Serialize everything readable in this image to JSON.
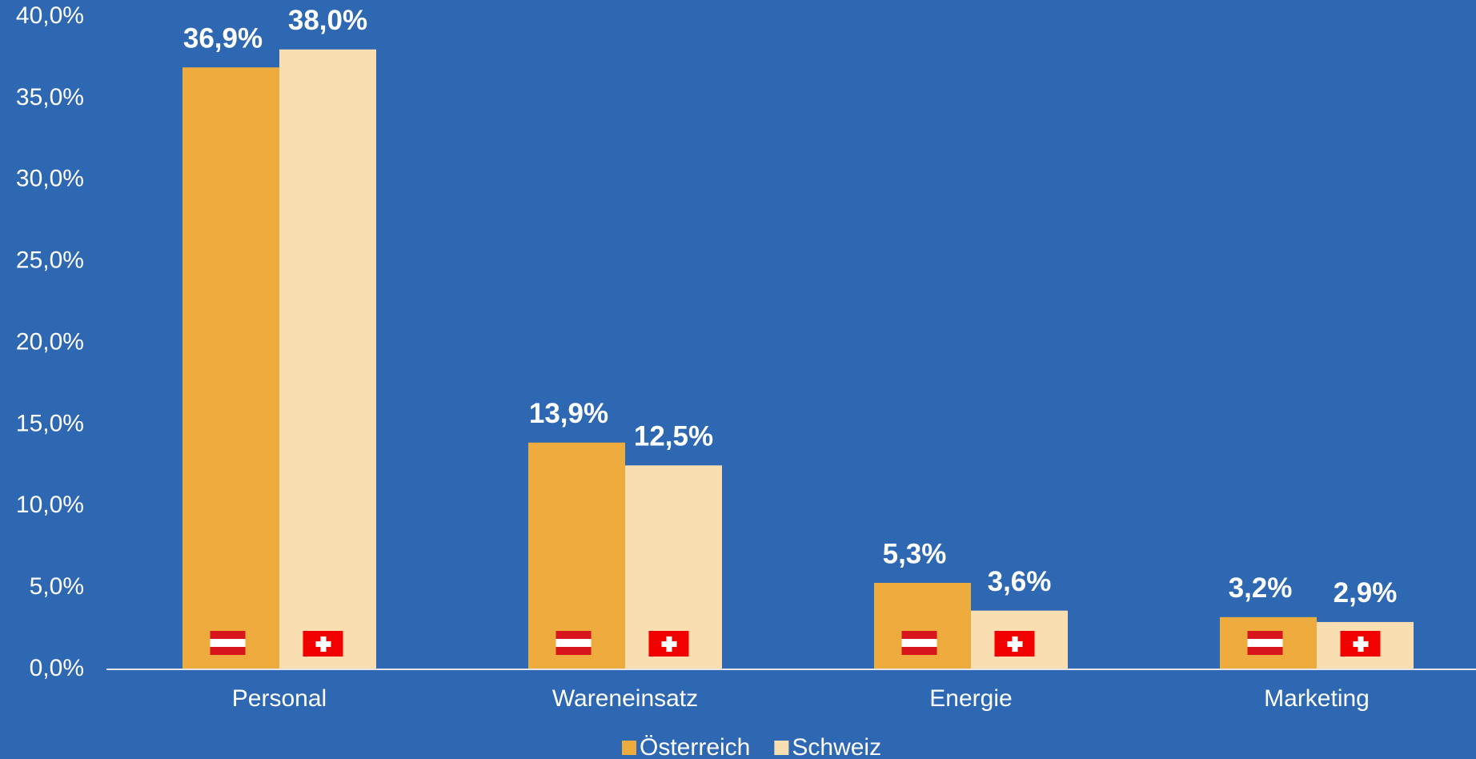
{
  "chart_data": {
    "type": "bar",
    "categories": [
      "Personal",
      "Wareneinsatz",
      "Energie",
      "Marketing"
    ],
    "series": [
      {
        "name": "Österreich",
        "color": "#eeac3e",
        "values": [
          36.9,
          13.9,
          5.3,
          3.2
        ],
        "value_labels": [
          "36,9%",
          "13,9%",
          "5,3%",
          "3,2%"
        ]
      },
      {
        "name": "Schweiz",
        "color": "#f8deb0",
        "values": [
          38.0,
          12.5,
          3.6,
          2.9
        ],
        "value_labels": [
          "38,0%",
          "12,5%",
          "3,6%",
          "2,9%"
        ]
      }
    ],
    "ylim": [
      0,
      40
    ],
    "yticks": [
      {
        "value": 0,
        "label": "0,0%"
      },
      {
        "value": 5,
        "label": "5,0%"
      },
      {
        "value": 10,
        "label": "10,0%"
      },
      {
        "value": 15,
        "label": "15,0%"
      },
      {
        "value": 20,
        "label": "20,0%"
      },
      {
        "value": 25,
        "label": "25,0%"
      },
      {
        "value": 30,
        "label": "30,0%"
      },
      {
        "value": 35,
        "label": "35,0%"
      },
      {
        "value": 40,
        "label": "40,0%"
      }
    ],
    "grid": false,
    "legend": "bottom"
  }
}
